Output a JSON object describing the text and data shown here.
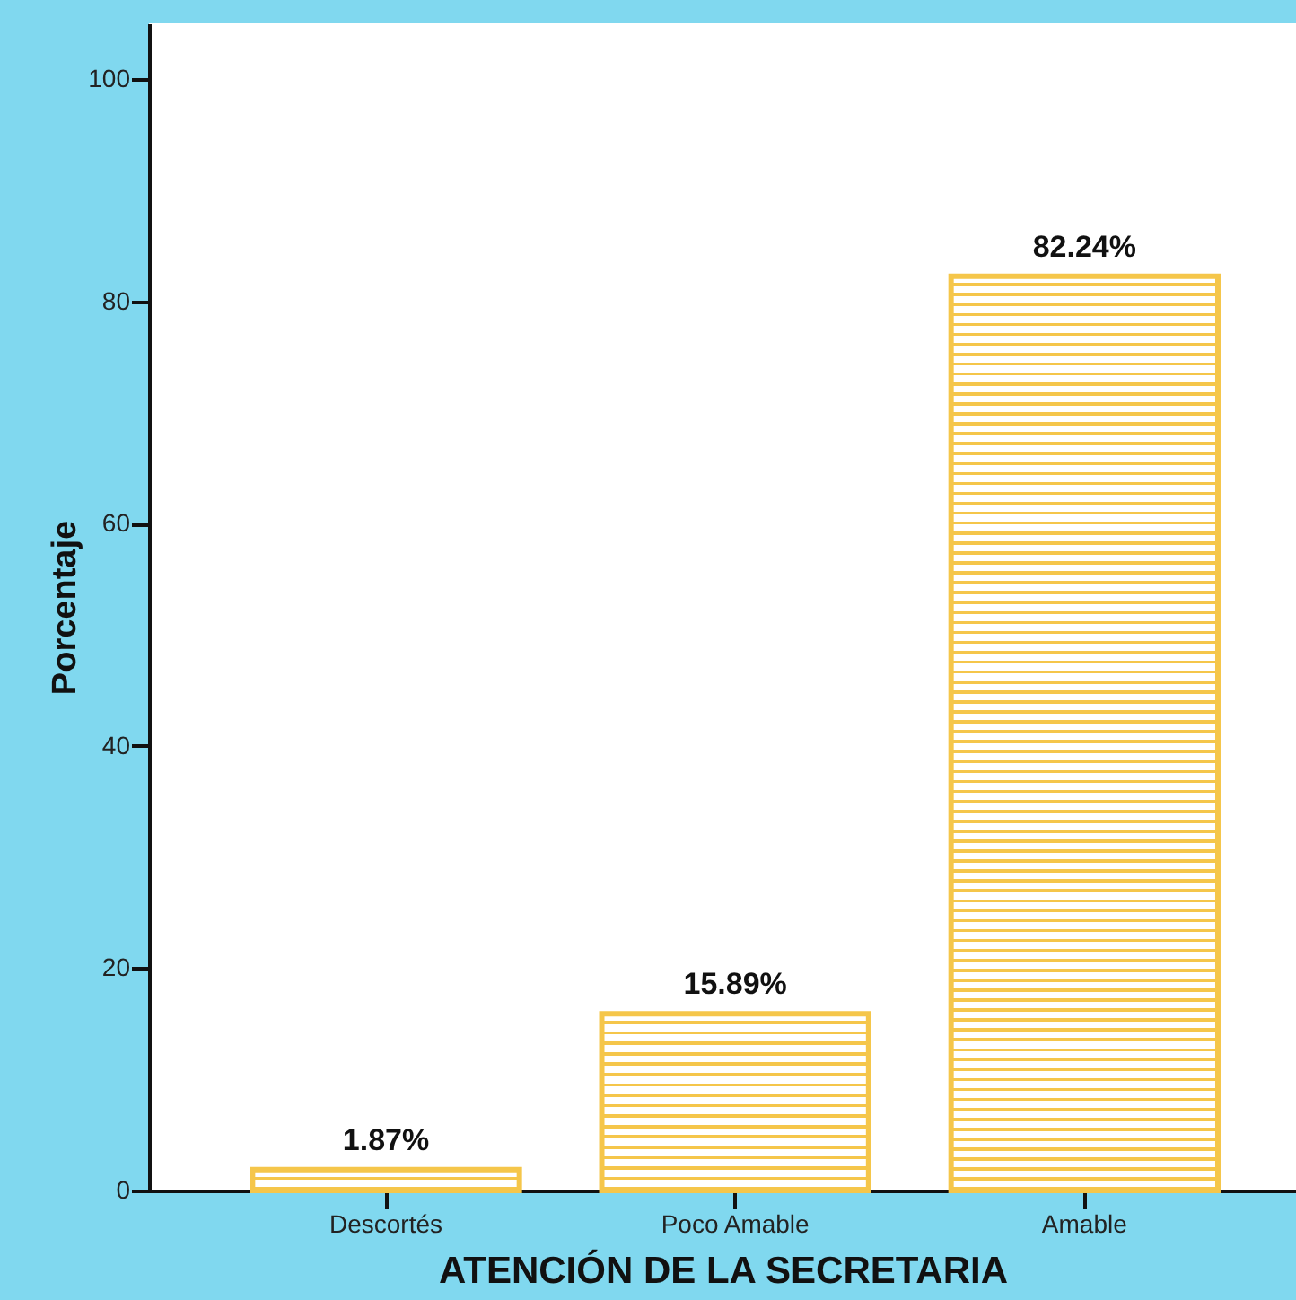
{
  "chart_data": {
    "type": "bar",
    "xlabel": "ATENCIÓN DE LA SECRETARIA",
    "ylabel": "Porcentaje",
    "categories": [
      "Descortés",
      "Poco Amable",
      "Amable"
    ],
    "values": [
      1.87,
      15.89,
      82.24
    ],
    "value_labels": [
      "1.87%",
      "15.89%",
      "82.24%"
    ],
    "color": "#f5c64a",
    "ylim": [
      0,
      105
    ],
    "yticks": [
      0,
      20,
      40,
      60,
      80,
      100
    ]
  }
}
